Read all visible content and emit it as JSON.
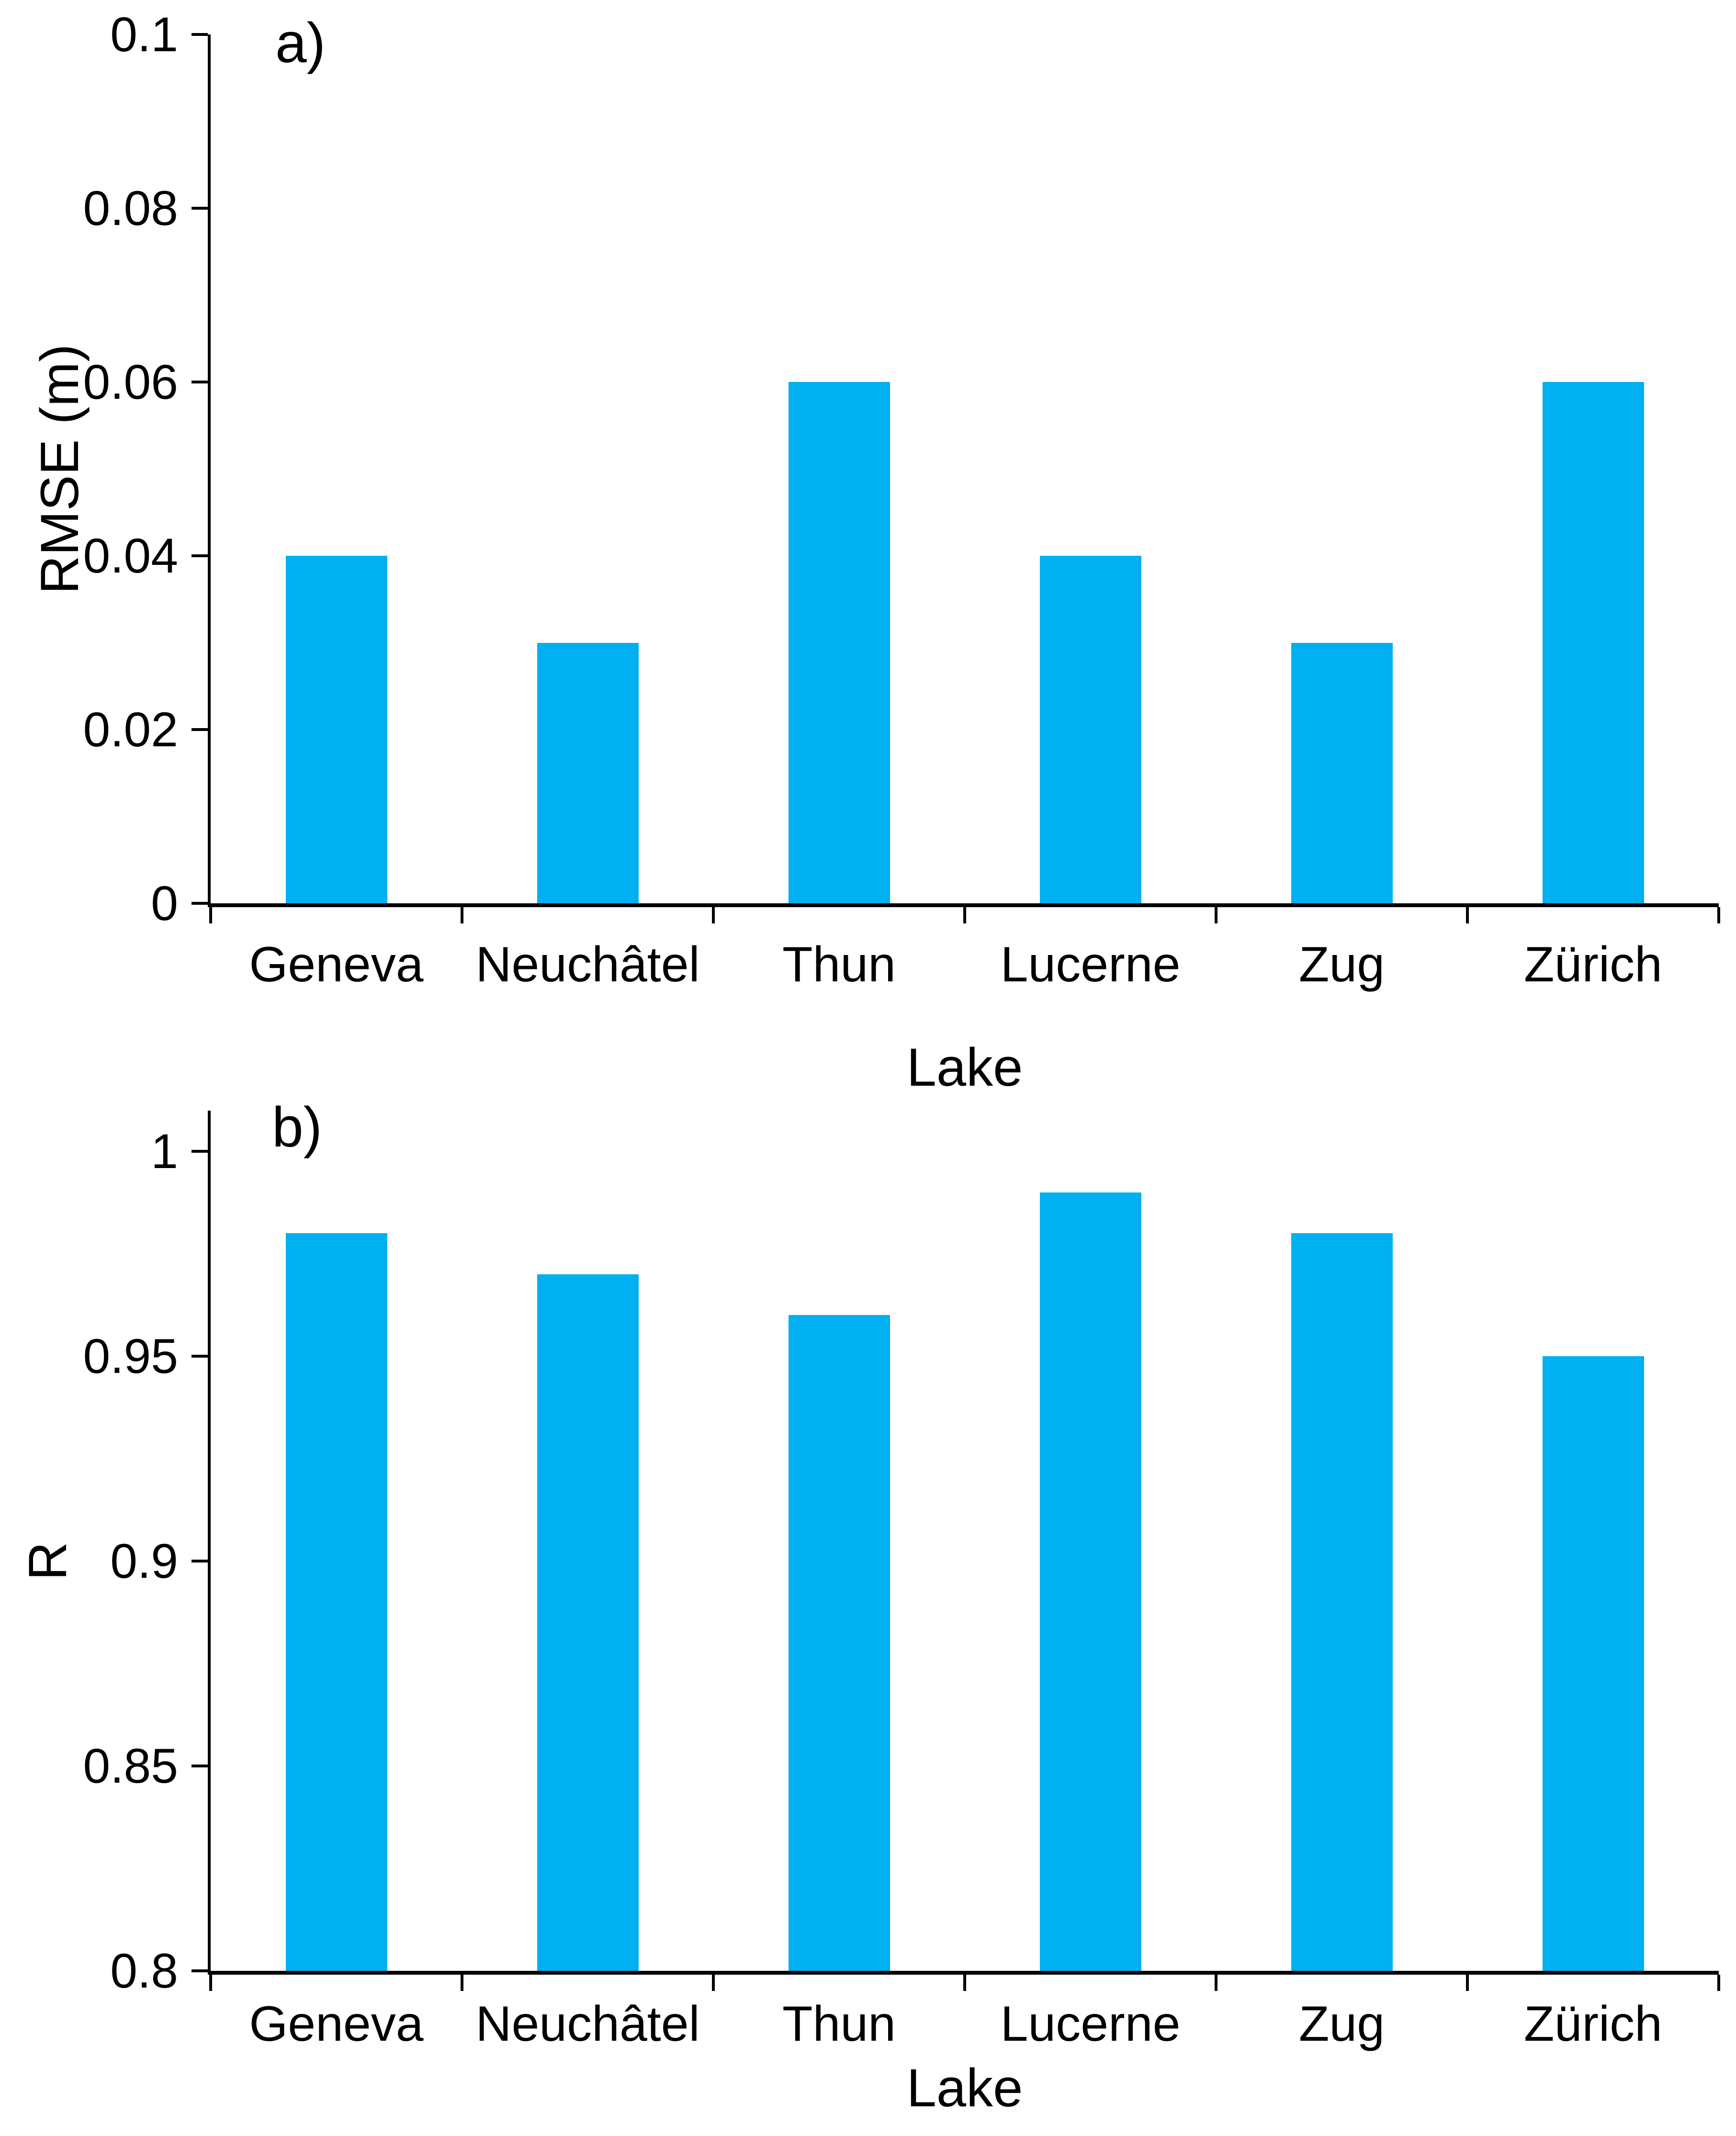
{
  "figure": {
    "bar_color": "#00b0f0",
    "axis_color": "#000000",
    "text_color": "#000000",
    "background": "#ffffff"
  },
  "chart_data": [
    {
      "type": "bar",
      "panel_label": "a)",
      "xlabel": "Lake",
      "ylabel": "RMSE (m)",
      "categories": [
        "Geneva",
        "Neuchâtel",
        "Thun",
        "Lucerne",
        "Zug",
        "Zürich"
      ],
      "values": [
        0.04,
        0.03,
        0.06,
        0.04,
        0.03,
        0.06
      ],
      "ylim": [
        0,
        0.1
      ],
      "yticks": [
        0,
        0.02,
        0.04,
        0.06,
        0.08,
        0.1
      ],
      "ytick_labels": [
        "0",
        "0.02",
        "0.04",
        "0.06",
        "0.08",
        "0.1"
      ],
      "grid": false,
      "legend": "none"
    },
    {
      "type": "bar",
      "panel_label": "b)",
      "xlabel": "Lake",
      "ylabel": "R",
      "categories": [
        "Geneva",
        "Neuchâtel",
        "Thun",
        "Lucerne",
        "Zug",
        "Zürich"
      ],
      "values": [
        0.98,
        0.97,
        0.96,
        0.99,
        0.98,
        0.95
      ],
      "ylim": [
        0.8,
        1.0
      ],
      "yticks": [
        0.8,
        0.85,
        0.9,
        0.95,
        1.0
      ],
      "ytick_labels": [
        "0.8",
        "0.85",
        "0.9",
        "0.95",
        "1"
      ],
      "grid": false,
      "legend": "none"
    }
  ]
}
